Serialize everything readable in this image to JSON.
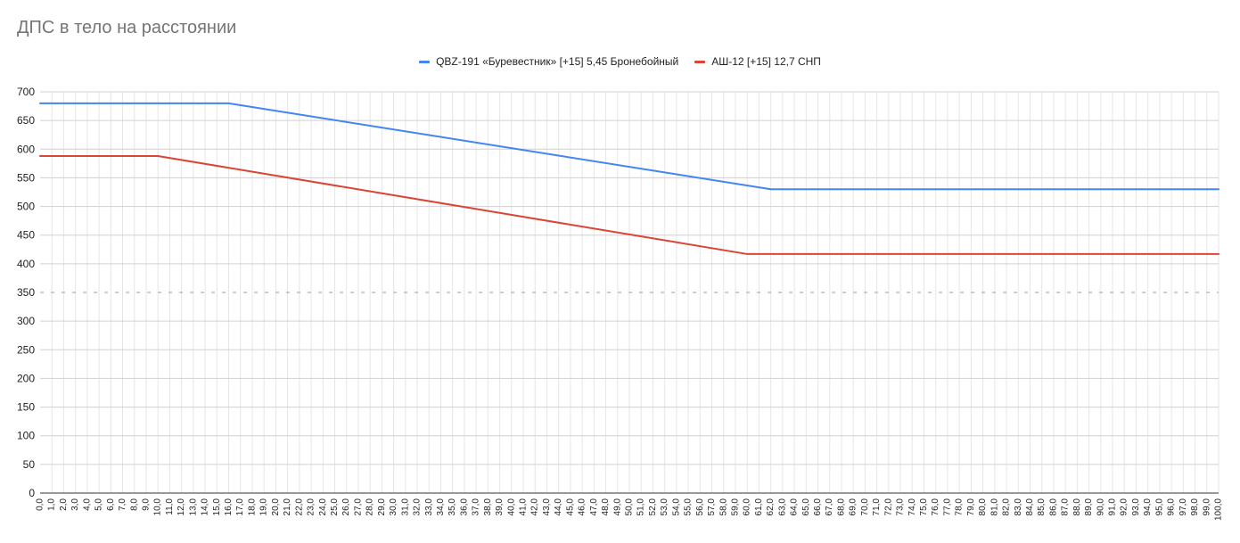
{
  "chart_data": {
    "type": "line",
    "title": "ДПС в тело на расстоянии",
    "xlabel": "",
    "ylabel": "",
    "x_range": [
      0,
      100
    ],
    "x_step": 1,
    "x_decimals": 1,
    "ylim": [
      0,
      700
    ],
    "y_ticks": [
      0,
      50,
      100,
      150,
      200,
      250,
      300,
      350,
      400,
      450,
      500,
      550,
      600,
      650,
      700
    ],
    "grid": true,
    "legend_position": "top",
    "series": [
      {
        "name": "QBZ-191 «Буревестник» [+15] 5,45 Бронебойный",
        "color": "#4285f4",
        "points": [
          [
            0,
            680
          ],
          [
            16,
            680
          ],
          [
            62,
            530
          ],
          [
            100,
            530
          ]
        ]
      },
      {
        "name": "АШ-12 [+15] 12,7 СНП",
        "color": "#db4437",
        "points": [
          [
            0,
            588
          ],
          [
            10,
            588
          ],
          [
            60,
            417
          ],
          [
            100,
            417
          ]
        ]
      }
    ]
  }
}
